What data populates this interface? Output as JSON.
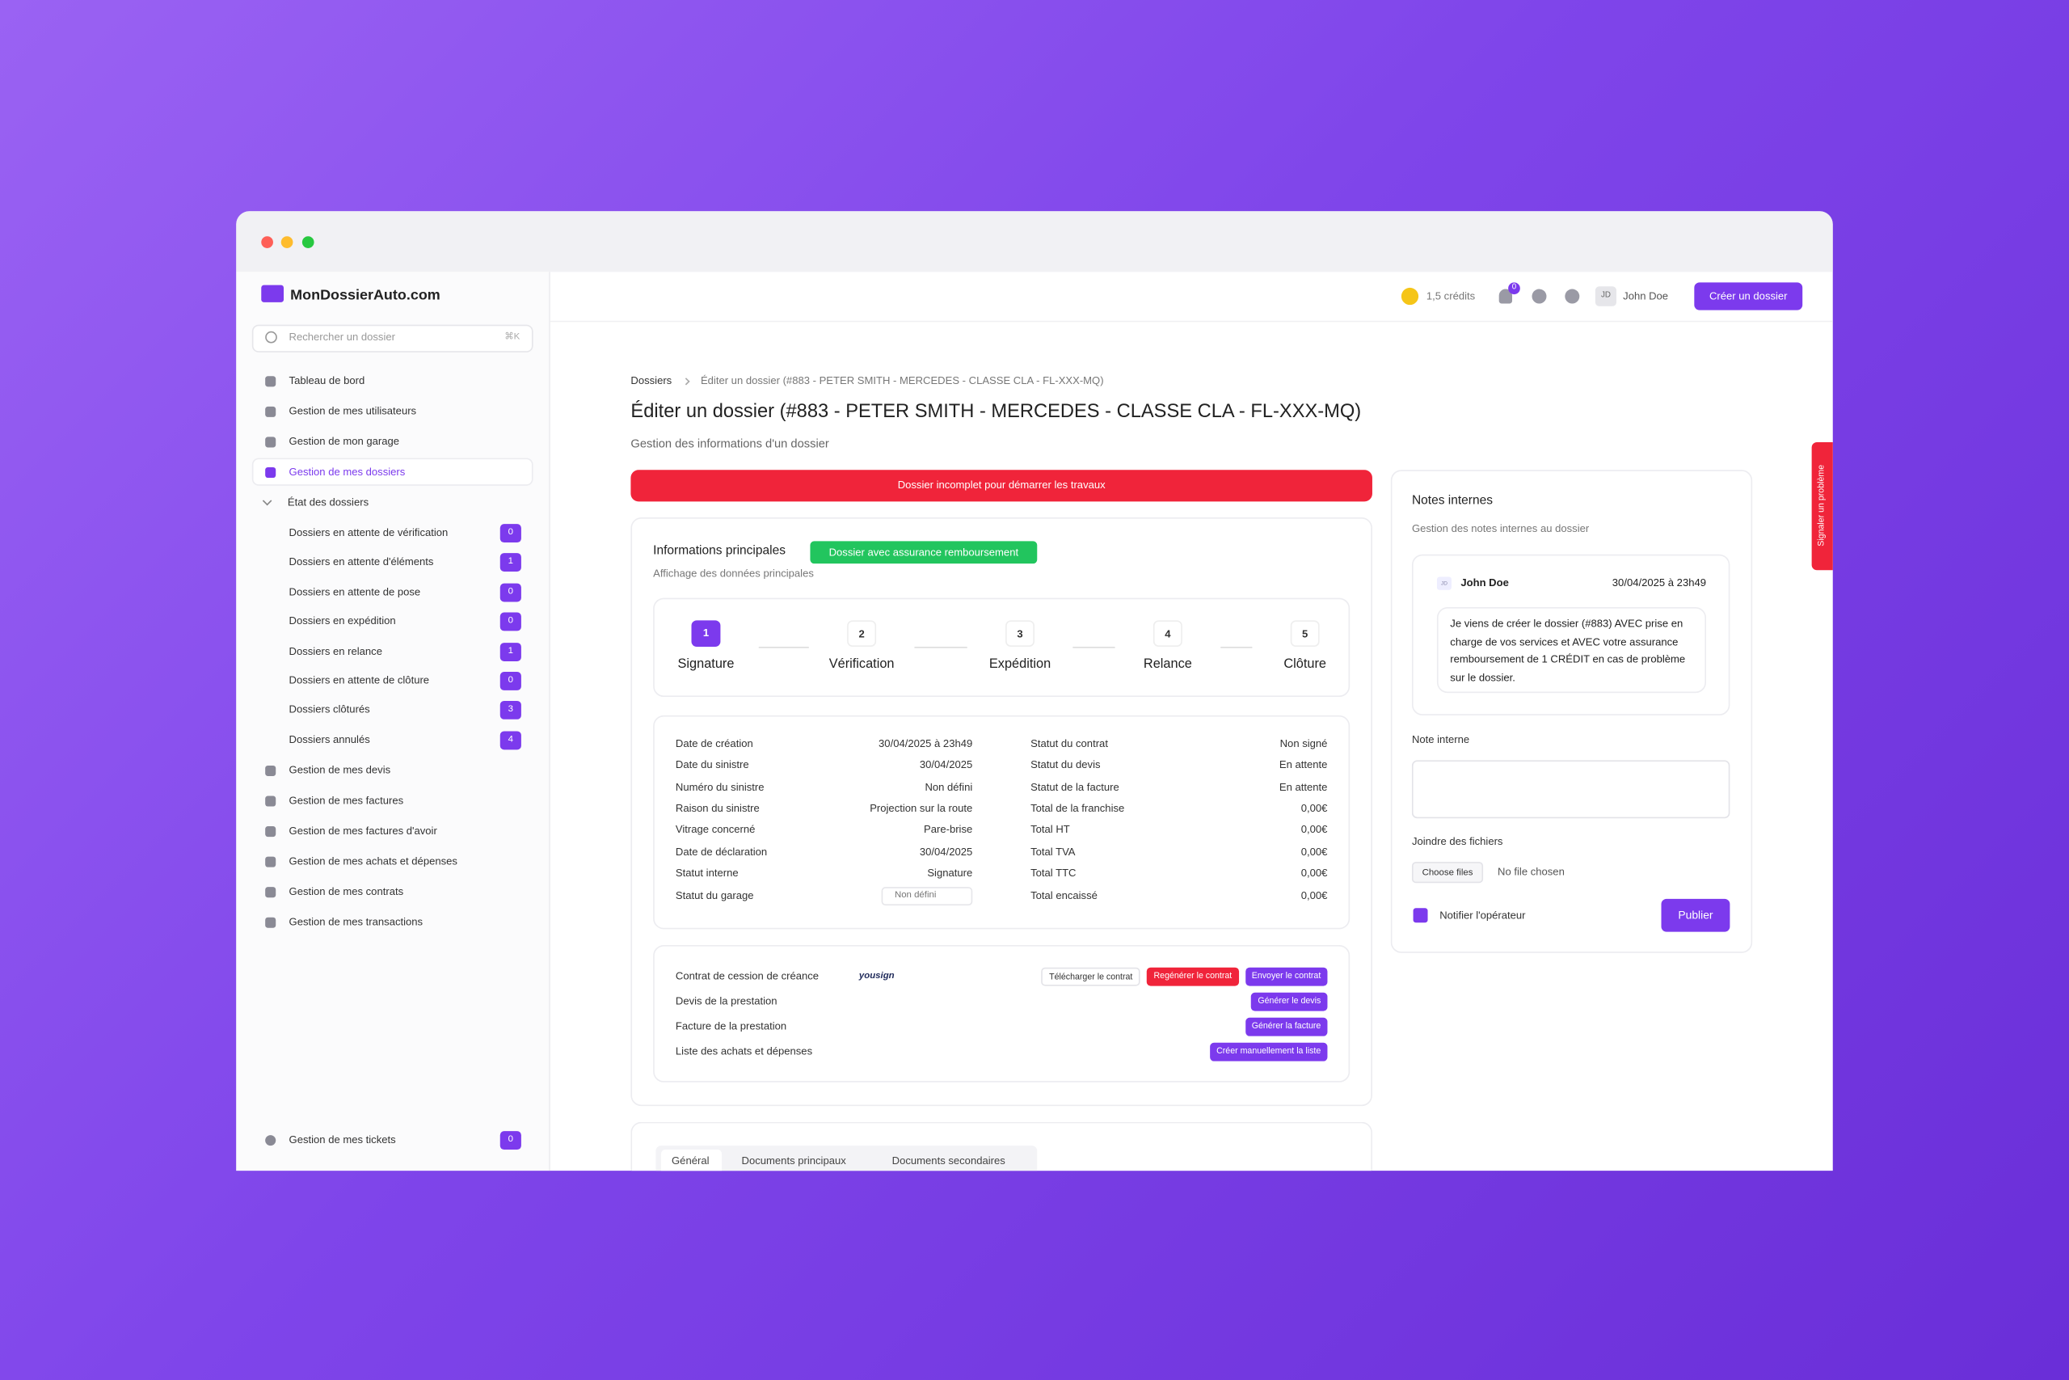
{
  "app": {
    "name": "MonDossierAuto.com",
    "search_placeholder": "Rechercher un dossier",
    "search_shortcut": "⌘K"
  },
  "sidebar": {
    "items": [
      "Tableau de bord",
      "Gestion de mes utilisateurs",
      "Gestion de mon garage",
      "Gestion de mes dossiers"
    ],
    "active_index": 3,
    "status_group": {
      "label": "État des dossiers",
      "items": [
        {
          "label": "Dossiers en attente de vérification",
          "count": 0
        },
        {
          "label": "Dossiers en attente d'éléments",
          "count": 1
        },
        {
          "label": "Dossiers en attente de pose",
          "count": 0
        },
        {
          "label": "Dossiers en expédition",
          "count": 0
        },
        {
          "label": "Dossiers en relance",
          "count": 1
        },
        {
          "label": "Dossiers en attente de clôture",
          "count": 0
        },
        {
          "label": "Dossiers clôturés",
          "count": 3
        },
        {
          "label": "Dossiers annulés",
          "count": 4
        }
      ]
    },
    "more_items": [
      "Gestion de mes devis",
      "Gestion de mes factures",
      "Gestion de mes factures d'avoir",
      "Gestion de mes achats et dépenses",
      "Gestion de mes contrats",
      "Gestion de mes transactions"
    ],
    "footer": {
      "label": "Gestion de mes tickets",
      "count": 0
    }
  },
  "topbar": {
    "credits": "1,5 crédits",
    "notifications": 0,
    "user_initials": "JD",
    "user_name": "John Doe",
    "create_button": "Créer un dossier"
  },
  "breadcrumb": [
    "Dossiers",
    "Éditer un dossier (#883 - PETER SMITH - MERCEDES - CLASSE CLA - FL-XXX-MQ)"
  ],
  "page": {
    "title": "Éditer un dossier (#883 - PETER SMITH - MERCEDES - CLASSE CLA - FL-XXX-MQ)",
    "subtitle": "Gestion des informations d'un dossier",
    "alert": "Dossier incomplet pour démarrer les travaux"
  },
  "main_info": {
    "title": "Informations principales",
    "badge": "Dossier avec assurance remboursement",
    "subtitle": "Affichage des données principales",
    "steps": [
      {
        "number": 1,
        "label": "Signature"
      },
      {
        "number": 2,
        "label": "Vérification"
      },
      {
        "number": 3,
        "label": "Expédition"
      },
      {
        "number": 4,
        "label": "Relance"
      },
      {
        "number": 5,
        "label": "Clôture"
      }
    ],
    "current_step": 0,
    "details_left": [
      [
        "Date de création",
        "30/04/2025 à 23h49"
      ],
      [
        "Date du sinistre",
        "30/04/2025"
      ],
      [
        "Numéro du sinistre",
        "Non défini"
      ],
      [
        "Raison du sinistre",
        "Projection sur la route"
      ],
      [
        "Vitrage concerné",
        "Pare-brise"
      ],
      [
        "Date de déclaration",
        "30/04/2025"
      ],
      [
        "Statut interne",
        "Signature"
      ],
      [
        "Statut du garage",
        "Non défini"
      ]
    ],
    "details_right": [
      [
        "Statut du contrat",
        "Non signé"
      ],
      [
        "Statut du devis",
        "En attente"
      ],
      [
        "Statut de la facture",
        "En attente"
      ],
      [
        "Total de la franchise",
        "0,00€"
      ],
      [
        "Total HT",
        "0,00€"
      ],
      [
        "Total TVA",
        "0,00€"
      ],
      [
        "Total TTC",
        "0,00€"
      ],
      [
        "Total encaissé",
        "0,00€"
      ]
    ]
  },
  "documents": [
    {
      "label": "Contrat de cession de créance",
      "logo": "yousign",
      "buttons": [
        {
          "label": "Télécharger le contrat",
          "style": "outline"
        },
        {
          "label": "Regénérer le contrat",
          "style": "danger"
        },
        {
          "label": "Envoyer le contrat",
          "style": "primary"
        }
      ]
    },
    {
      "label": "Devis de la prestation",
      "buttons": [
        {
          "label": "Générer le devis",
          "style": "primary"
        }
      ]
    },
    {
      "label": "Facture de la prestation",
      "buttons": [
        {
          "label": "Générer la facture",
          "style": "primary"
        }
      ]
    },
    {
      "label": "Liste des achats et dépenses",
      "buttons": [
        {
          "label": "Créer manuellement la liste",
          "style": "primary"
        }
      ]
    }
  ],
  "tabs": [
    "Général",
    "Documents principaux",
    "Documents secondaires"
  ],
  "notes": {
    "title": "Notes internes",
    "subtitle": "Gestion des notes internes au dossier",
    "note": {
      "initials": "JD",
      "author": "John Doe",
      "date": "30/04/2025 à 23h49",
      "text": "Je viens de créer le dossier (#883) AVEC prise en charge de vos services et AVEC votre assurance remboursement de 1 CRÉDIT en cas de problème sur le dossier."
    },
    "field_label": "Note interne",
    "files_label": "Joindre des fichiers",
    "choose_files": "Choose files",
    "no_file": "No file chosen",
    "notify": "Notifier l'opérateur",
    "publish": "Publier"
  },
  "side_tab": "Signaler un problème"
}
